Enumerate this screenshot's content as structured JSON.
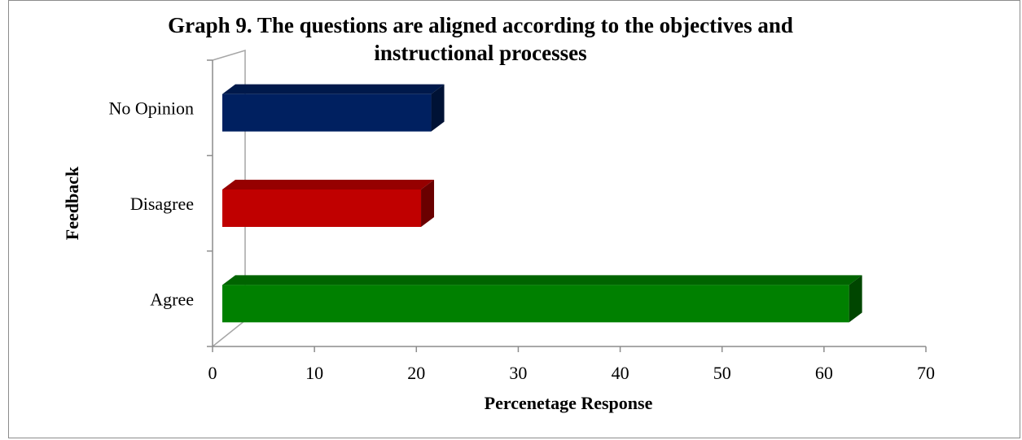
{
  "chart_data": {
    "type": "bar",
    "orientation": "horizontal",
    "title_line1": "Graph 9. The questions are aligned according to the objectives and",
    "title_line2": "instructional processes",
    "xlabel": "Percenetage Response",
    "ylabel": "Feedback",
    "categories": [
      "Agree",
      "Disagree",
      "No Opinion"
    ],
    "values": [
      61.5,
      19.5,
      20.5
    ],
    "colors": [
      "#008000",
      "#c00000",
      "#002060"
    ],
    "xlim": [
      0,
      70
    ],
    "xticks": [
      0,
      10,
      20,
      30,
      40,
      50,
      60,
      70
    ],
    "grid": false,
    "legend": "none"
  }
}
